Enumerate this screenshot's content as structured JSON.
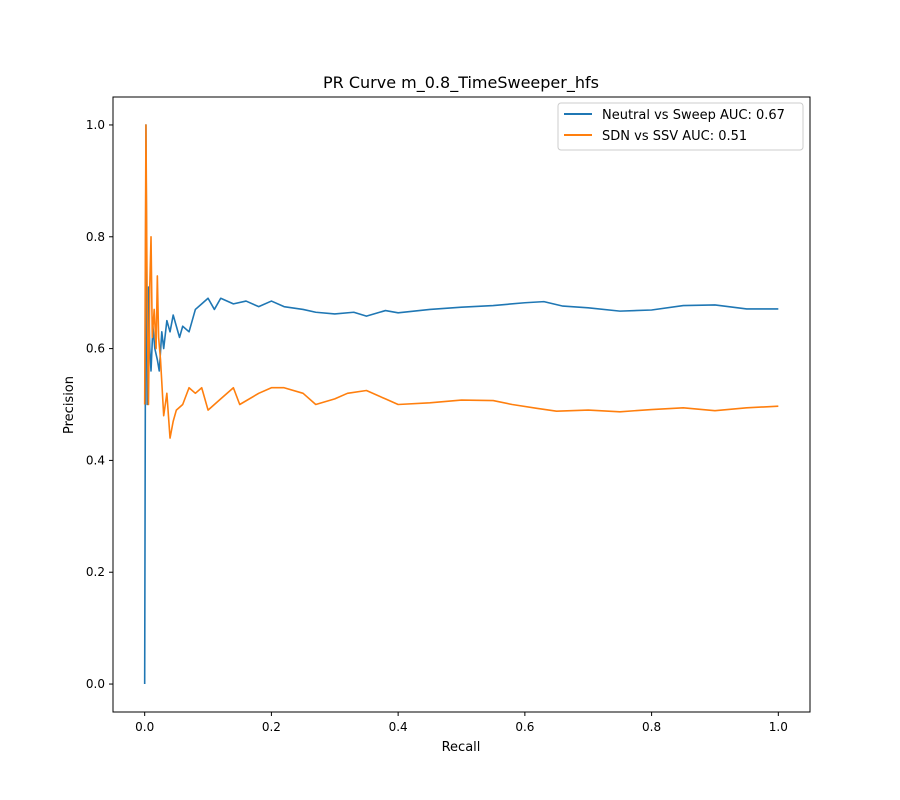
{
  "chart_data": {
    "type": "line",
    "title": "PR Curve m_0.8_TimeSweeper_hfs",
    "xlabel": "Recall",
    "ylabel": "Precision",
    "xlim": [
      -0.05,
      1.05
    ],
    "ylim": [
      -0.05,
      1.05
    ],
    "xticks": [
      0.0,
      0.2,
      0.4,
      0.6,
      0.8,
      1.0
    ],
    "yticks": [
      0.0,
      0.2,
      0.4,
      0.6,
      0.8,
      1.0
    ],
    "xtick_labels": [
      "0.0",
      "0.2",
      "0.4",
      "0.6",
      "0.8",
      "1.0"
    ],
    "ytick_labels": [
      "0.0",
      "0.2",
      "0.4",
      "0.6",
      "0.8",
      "1.0"
    ],
    "grid": false,
    "legend_position": "top-right",
    "series": [
      {
        "name": "Neutral vs Sweep AUC: 0.67",
        "color": "#1f77b4",
        "points": [
          [
            0.0,
            0.0
          ],
          [
            0.002,
            1.0
          ],
          [
            0.004,
            0.5
          ],
          [
            0.006,
            0.71
          ],
          [
            0.008,
            0.6
          ],
          [
            0.01,
            0.56
          ],
          [
            0.013,
            0.64
          ],
          [
            0.016,
            0.6
          ],
          [
            0.02,
            0.58
          ],
          [
            0.023,
            0.56
          ],
          [
            0.027,
            0.63
          ],
          [
            0.03,
            0.6
          ],
          [
            0.035,
            0.65
          ],
          [
            0.04,
            0.63
          ],
          [
            0.045,
            0.66
          ],
          [
            0.05,
            0.64
          ],
          [
            0.055,
            0.62
          ],
          [
            0.06,
            0.64
          ],
          [
            0.07,
            0.63
          ],
          [
            0.08,
            0.67
          ],
          [
            0.09,
            0.68
          ],
          [
            0.1,
            0.69
          ],
          [
            0.11,
            0.67
          ],
          [
            0.12,
            0.69
          ],
          [
            0.14,
            0.68
          ],
          [
            0.16,
            0.685
          ],
          [
            0.18,
            0.675
          ],
          [
            0.2,
            0.685
          ],
          [
            0.22,
            0.675
          ],
          [
            0.25,
            0.67
          ],
          [
            0.27,
            0.665
          ],
          [
            0.3,
            0.662
          ],
          [
            0.33,
            0.665
          ],
          [
            0.35,
            0.658
          ],
          [
            0.38,
            0.668
          ],
          [
            0.4,
            0.664
          ],
          [
            0.45,
            0.67
          ],
          [
            0.5,
            0.674
          ],
          [
            0.55,
            0.677
          ],
          [
            0.6,
            0.682
          ],
          [
            0.63,
            0.684
          ],
          [
            0.66,
            0.676
          ],
          [
            0.7,
            0.673
          ],
          [
            0.75,
            0.667
          ],
          [
            0.8,
            0.669
          ],
          [
            0.85,
            0.677
          ],
          [
            0.9,
            0.678
          ],
          [
            0.95,
            0.671
          ],
          [
            1.0,
            0.671
          ]
        ]
      },
      {
        "name": "SDN vs SSV AUC: 0.51",
        "color": "#ff7f0e",
        "points": [
          [
            0.0,
            0.5
          ],
          [
            0.002,
            1.0
          ],
          [
            0.004,
            0.67
          ],
          [
            0.006,
            0.5
          ],
          [
            0.008,
            0.71
          ],
          [
            0.01,
            0.8
          ],
          [
            0.012,
            0.62
          ],
          [
            0.015,
            0.67
          ],
          [
            0.018,
            0.6
          ],
          [
            0.02,
            0.73
          ],
          [
            0.022,
            0.62
          ],
          [
            0.025,
            0.58
          ],
          [
            0.03,
            0.48
          ],
          [
            0.035,
            0.52
          ],
          [
            0.04,
            0.44
          ],
          [
            0.045,
            0.47
          ],
          [
            0.05,
            0.49
          ],
          [
            0.06,
            0.5
          ],
          [
            0.07,
            0.53
          ],
          [
            0.08,
            0.52
          ],
          [
            0.09,
            0.53
          ],
          [
            0.1,
            0.49
          ],
          [
            0.12,
            0.51
          ],
          [
            0.14,
            0.53
          ],
          [
            0.15,
            0.5
          ],
          [
            0.18,
            0.52
          ],
          [
            0.2,
            0.53
          ],
          [
            0.22,
            0.53
          ],
          [
            0.25,
            0.52
          ],
          [
            0.27,
            0.5
          ],
          [
            0.3,
            0.51
          ],
          [
            0.32,
            0.52
          ],
          [
            0.35,
            0.525
          ],
          [
            0.38,
            0.51
          ],
          [
            0.4,
            0.5
          ],
          [
            0.45,
            0.503
          ],
          [
            0.5,
            0.508
          ],
          [
            0.55,
            0.507
          ],
          [
            0.58,
            0.5
          ],
          [
            0.62,
            0.493
          ],
          [
            0.65,
            0.488
          ],
          [
            0.7,
            0.49
          ],
          [
            0.75,
            0.487
          ],
          [
            0.8,
            0.491
          ],
          [
            0.85,
            0.494
          ],
          [
            0.9,
            0.489
          ],
          [
            0.95,
            0.494
          ],
          [
            1.0,
            0.497
          ]
        ]
      }
    ]
  }
}
